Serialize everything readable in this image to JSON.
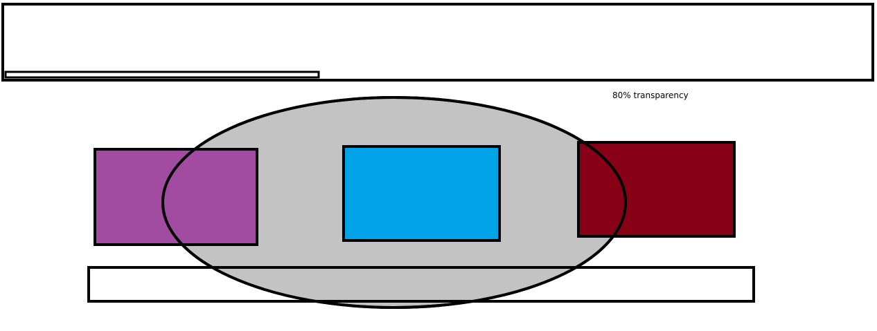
{
  "annotation": {
    "text": "80% transparency"
  },
  "colors": {
    "outline": "#000000",
    "background": "#ffffff",
    "ellipse_fill": "#c3c3c3",
    "purple_box": "#a24ca1",
    "blue_box": "#00a2e8",
    "red_box": "#880015"
  }
}
